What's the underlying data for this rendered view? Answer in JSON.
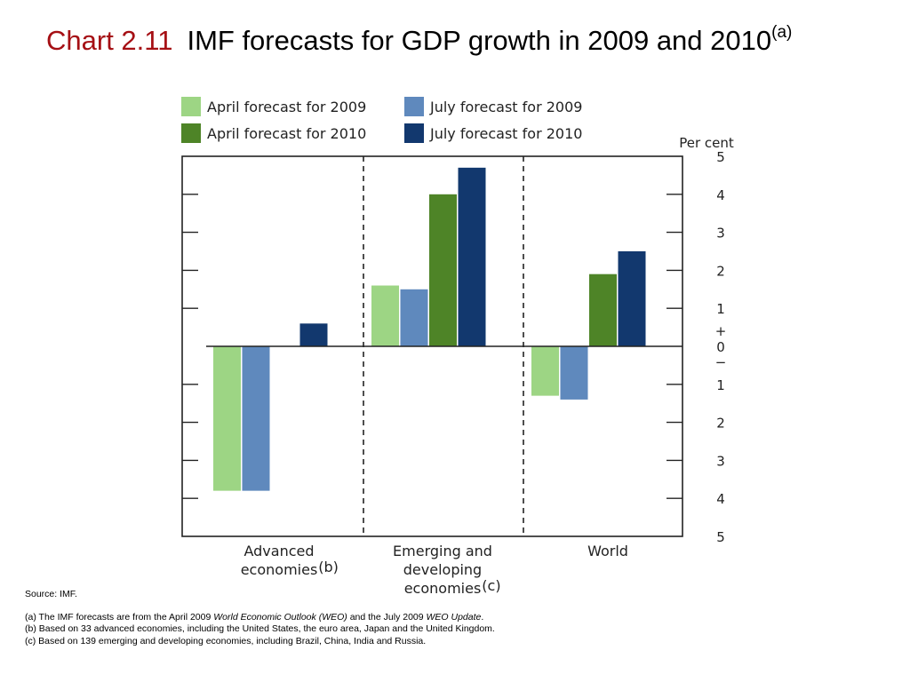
{
  "title": {
    "chart_number": "Chart 2.11",
    "text": "IMF forecasts for GDP growth in 2009 and 2010",
    "superscript": "(a)"
  },
  "chart_data": {
    "type": "bar",
    "title": "IMF forecasts for GDP growth in 2009 and 2010",
    "unit_label": "Per cent",
    "categories": [
      {
        "lines": [
          "Advanced",
          "economies"
        ],
        "note": "(b)"
      },
      {
        "lines": [
          "Emerging and",
          "developing",
          "economies"
        ],
        "note": "(c)"
      },
      {
        "lines": [
          "World"
        ],
        "note": ""
      }
    ],
    "series": [
      {
        "name": "April forecast for 2009",
        "color": "#9dd584",
        "values": [
          -3.8,
          1.6,
          -1.3
        ]
      },
      {
        "name": "July forecast for 2009",
        "color": "#5f89bd",
        "values": [
          -3.8,
          1.5,
          -1.4
        ]
      },
      {
        "name": "April forecast for 2010",
        "color": "#4e8427",
        "values": [
          null,
          4.0,
          1.9
        ]
      },
      {
        "name": "July forecast for 2010",
        "color": "#12386e",
        "values": [
          0.6,
          4.7,
          2.5
        ]
      }
    ],
    "ylim": [
      -5,
      5
    ],
    "y_tick_labels": [
      "5",
      "4",
      "3",
      "2",
      "1",
      "0",
      "1",
      "2",
      "3",
      "4",
      "5"
    ],
    "plus_sign": "+",
    "minus_sign": "−",
    "grid": false,
    "legend_position": "top-left"
  },
  "notes": {
    "source": "Source:  IMF.",
    "a_prefix": "(a) The IMF forecasts are from the April 2009 ",
    "a_weo": "World Economic Outlook (WEO)",
    "a_mid": " and the July 2009 ",
    "a_update": "WEO Update",
    "a_end": ".",
    "b": "(b) Based on 33 advanced economies, including the United States, the euro area, Japan and the United Kingdom.",
    "c": "(c) Based on 139 emerging and developing economies, including Brazil, China, India and Russia."
  }
}
